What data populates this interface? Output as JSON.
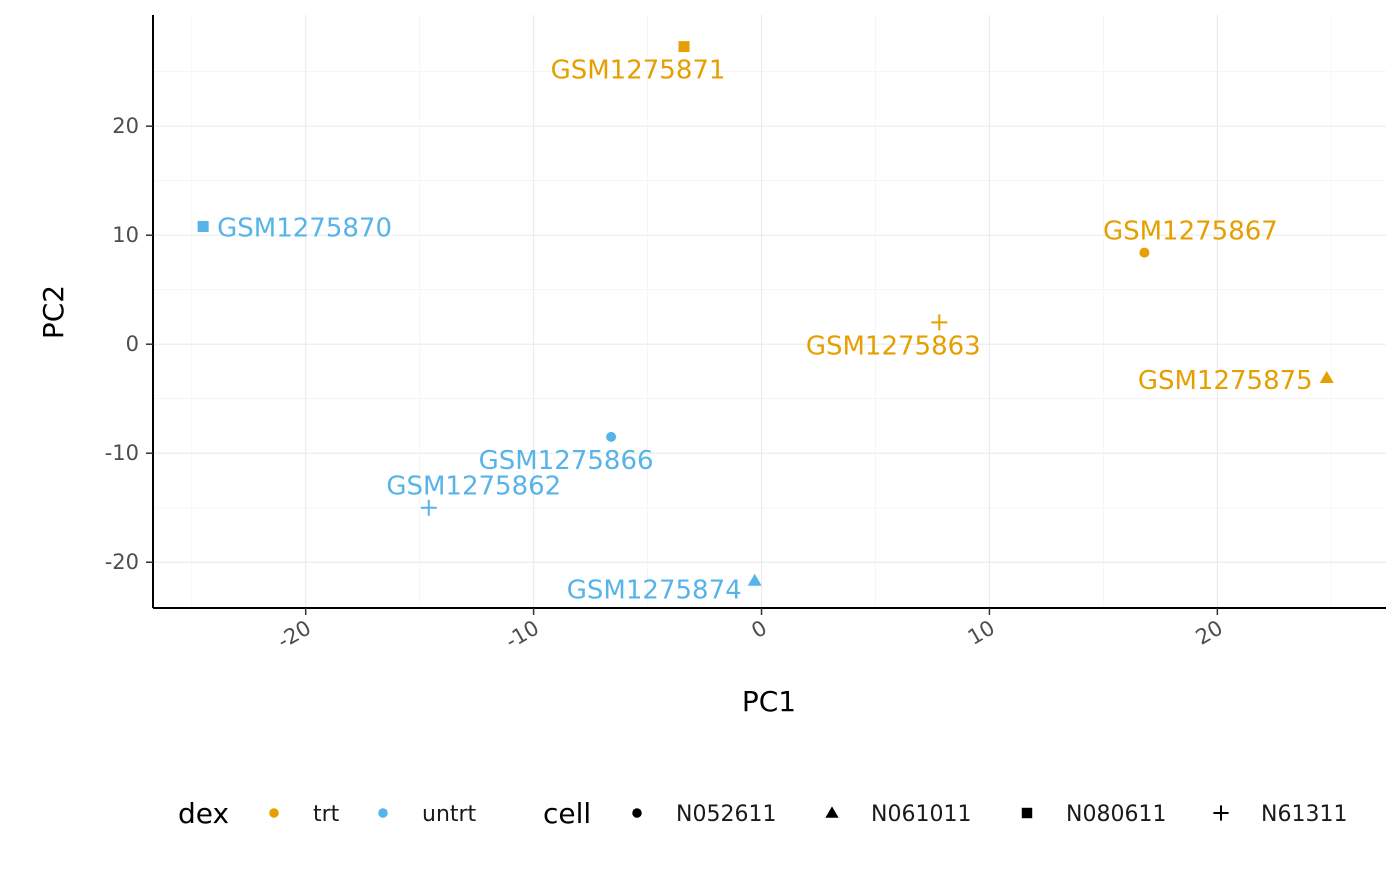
{
  "chart_data": {
    "type": "scatter",
    "xlabel": "PC1",
    "ylabel": "PC2",
    "xlim": [
      -26.7,
      27.4
    ],
    "ylim": [
      -24.2,
      30.2
    ],
    "x_ticks": [
      -20,
      -10,
      0,
      10,
      20
    ],
    "y_ticks": [
      -20,
      -10,
      0,
      10,
      20
    ],
    "x_tick_labels": [
      "-20",
      "-10",
      "0",
      "10",
      "20"
    ],
    "y_tick_labels": [
      "-20",
      "-10",
      "0",
      "10",
      "20"
    ],
    "grid": true,
    "colors": {
      "trt": "#E69F00",
      "untrt": "#56B4E9"
    },
    "shapes": {
      "N052611": "circle",
      "N061011": "triangle",
      "N080611": "square",
      "N61311": "plus"
    },
    "points": [
      {
        "label": "GSM1275871",
        "x": -3.4,
        "y": 27.3,
        "dex": "trt",
        "cell": "N080611"
      },
      {
        "label": "GSM1275870",
        "x": -24.5,
        "y": 10.8,
        "dex": "untrt",
        "cell": "N080611"
      },
      {
        "label": "GSM1275867",
        "x": 16.8,
        "y": 8.4,
        "dex": "trt",
        "cell": "N052611"
      },
      {
        "label": "GSM1275863",
        "x": 7.8,
        "y": 2.0,
        "dex": "trt",
        "cell": "N61311"
      },
      {
        "label": "GSM1275875",
        "x": 24.8,
        "y": -3.1,
        "dex": "trt",
        "cell": "N061011"
      },
      {
        "label": "GSM1275866",
        "x": -6.6,
        "y": -8.5,
        "dex": "untrt",
        "cell": "N052611"
      },
      {
        "label": "GSM1275862",
        "x": -14.6,
        "y": -15.0,
        "dex": "untrt",
        "cell": "N61311"
      },
      {
        "label": "GSM1275874",
        "x": -0.3,
        "y": -21.7,
        "dex": "untrt",
        "cell": "N061011"
      }
    ],
    "legend": {
      "position": "bottom",
      "groups": [
        {
          "title": "dex",
          "items": [
            {
              "label": "trt",
              "color": "#E69F00",
              "shape": "circle"
            },
            {
              "label": "untrt",
              "color": "#56B4E9",
              "shape": "circle"
            }
          ]
        },
        {
          "title": "cell",
          "items": [
            {
              "label": "N052611",
              "color": "#000000",
              "shape": "circle"
            },
            {
              "label": "N061011",
              "color": "#000000",
              "shape": "triangle"
            },
            {
              "label": "N080611",
              "color": "#000000",
              "shape": "square"
            },
            {
              "label": "N61311",
              "color": "#000000",
              "shape": "plus"
            }
          ]
        }
      ]
    }
  }
}
